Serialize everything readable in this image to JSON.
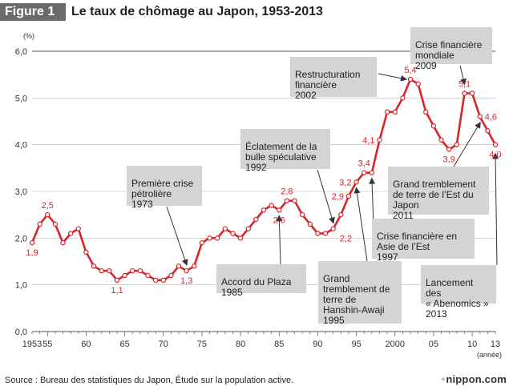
{
  "header": {
    "figure_label": "Figure 1",
    "title": "Le taux de chômage au Japon, 1953-2013"
  },
  "chart_data": {
    "type": "line",
    "title": "Le taux de chômage au Japon, 1953-2013",
    "ylabel": "(%)",
    "xlabel": "(année)",
    "ylim": [
      0,
      6
    ],
    "xlim": [
      1953,
      2013
    ],
    "y_ticks": [
      "0,0",
      "1,0",
      "2,0",
      "3,0",
      "4,0",
      "5,0",
      "6,0"
    ],
    "x_ticks": [
      {
        "year": 1953,
        "label": "1953"
      },
      {
        "year": 1955,
        "label": "55"
      },
      {
        "year": 1960,
        "label": "60"
      },
      {
        "year": 1965,
        "label": "65"
      },
      {
        "year": 1970,
        "label": "70"
      },
      {
        "year": 1975,
        "label": "75"
      },
      {
        "year": 1980,
        "label": "80"
      },
      {
        "year": 1985,
        "label": "85"
      },
      {
        "year": 1990,
        "label": "90"
      },
      {
        "year": 1995,
        "label": "95"
      },
      {
        "year": 2000,
        "label": "2000"
      },
      {
        "year": 2005,
        "label": "05"
      },
      {
        "year": 2010,
        "label": "10"
      },
      {
        "year": 2013,
        "label": "13"
      }
    ],
    "series": [
      {
        "name": "Taux de chômage",
        "color": "#d9252a",
        "x": [
          1953,
          1954,
          1955,
          1956,
          1957,
          1958,
          1959,
          1960,
          1961,
          1962,
          1963,
          1964,
          1965,
          1966,
          1967,
          1968,
          1969,
          1970,
          1971,
          1972,
          1973,
          1974,
          1975,
          1976,
          1977,
          1978,
          1979,
          1980,
          1981,
          1982,
          1983,
          1984,
          1985,
          1986,
          1987,
          1988,
          1989,
          1990,
          1991,
          1992,
          1993,
          1994,
          1995,
          1996,
          1997,
          1998,
          1999,
          2000,
          2001,
          2002,
          2003,
          2004,
          2005,
          2006,
          2007,
          2008,
          2009,
          2010,
          2011,
          2012,
          2013
        ],
        "values": [
          1.9,
          2.3,
          2.5,
          2.3,
          1.9,
          2.1,
          2.2,
          1.7,
          1.4,
          1.3,
          1.3,
          1.1,
          1.2,
          1.3,
          1.3,
          1.2,
          1.1,
          1.1,
          1.2,
          1.4,
          1.3,
          1.4,
          1.9,
          2.0,
          2.0,
          2.2,
          2.1,
          2.0,
          2.2,
          2.4,
          2.6,
          2.7,
          2.6,
          2.8,
          2.8,
          2.5,
          2.3,
          2.1,
          2.1,
          2.2,
          2.5,
          2.9,
          3.2,
          3.4,
          3.4,
          4.1,
          4.7,
          4.7,
          5.0,
          5.4,
          5.3,
          4.7,
          4.4,
          4.1,
          3.9,
          4.0,
          5.1,
          5.1,
          4.6,
          4.3,
          4.0
        ]
      }
    ],
    "data_labels": [
      {
        "year": 1953,
        "value": 1.9,
        "text": "1,9",
        "pos": "below"
      },
      {
        "year": 1955,
        "value": 2.5,
        "text": "2,5",
        "pos": "above"
      },
      {
        "year": 1964,
        "value": 1.1,
        "text": "1,1",
        "pos": "below"
      },
      {
        "year": 1973,
        "value": 1.3,
        "text": "1,3",
        "pos": "below"
      },
      {
        "year": 1986,
        "value": 2.8,
        "text": "2,8",
        "pos": "above"
      },
      {
        "year": 1985,
        "value": 2.6,
        "text": "2,6",
        "pos": "below"
      },
      {
        "year": 1992,
        "value": 2.2,
        "text": "2,2",
        "pos": "below-right"
      },
      {
        "year": 1994,
        "value": 2.9,
        "text": "2,9",
        "pos": "left"
      },
      {
        "year": 1995,
        "value": 3.2,
        "text": "3,2",
        "pos": "left"
      },
      {
        "year": 1996,
        "value": 3.4,
        "text": "3,4",
        "pos": "above"
      },
      {
        "year": 1998,
        "value": 4.1,
        "text": "4,1",
        "pos": "left"
      },
      {
        "year": 2002,
        "value": 5.4,
        "text": "5,4",
        "pos": "above"
      },
      {
        "year": 2009,
        "value": 5.1,
        "text": "5,1",
        "pos": "above"
      },
      {
        "year": 2007,
        "value": 3.9,
        "text": "3,9",
        "pos": "below"
      },
      {
        "year": 2011,
        "value": 4.6,
        "text": "4,6",
        "pos": "right"
      },
      {
        "year": 2013,
        "value": 4.0,
        "text": "4,0",
        "pos": "below"
      }
    ]
  },
  "callouts": [
    {
      "id": "oil-crisis",
      "lines": [
        "Première crise",
        "pétrolière",
        "1973"
      ]
    },
    {
      "id": "plaza",
      "lines": [
        "Accord du Plaza",
        "1985"
      ]
    },
    {
      "id": "bubble",
      "lines": [
        "Éclatement de la",
        "bulle spéculative",
        "1992"
      ]
    },
    {
      "id": "hanshin",
      "lines": [
        "Grand",
        "tremblement de",
        "terre de",
        "Hanshin-Awaji",
        "1995"
      ]
    },
    {
      "id": "asia",
      "lines": [
        "Crise financière en",
        "Asie de l’Est",
        "1997"
      ]
    },
    {
      "id": "restructuring",
      "lines": [
        "Restructuration",
        "financière",
        "2002"
      ]
    },
    {
      "id": "world-crisis",
      "lines": [
        "Crise financière",
        "mondiale",
        "2009"
      ]
    },
    {
      "id": "east-quake",
      "lines": [
        "Grand tremblement",
        "de terre de l’Est du",
        "Japon",
        "2011"
      ]
    },
    {
      "id": "abenomics",
      "lines": [
        "Lancement des",
        "« Abenomics »",
        "2013"
      ]
    }
  ],
  "footer": {
    "source": "Source : Bureau des statistiques du Japon, Étude sur la population active.",
    "brand_dot": "•",
    "brand": "nippon.com"
  }
}
